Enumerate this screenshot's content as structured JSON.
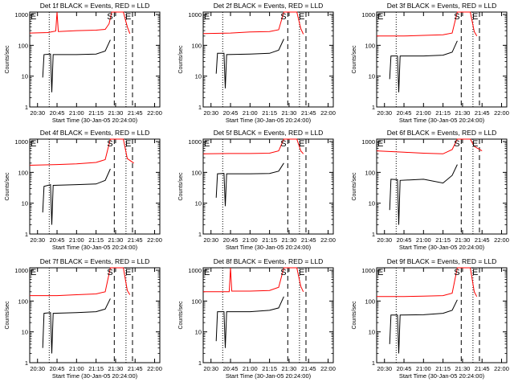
{
  "chart_data": [
    {
      "type": "line",
      "title": "Det 1f BLACK = Events, RED = LLD",
      "ylabel": "Counts/sec",
      "xlabel": "Start Time (30-Jan-05 20:24:00)",
      "x_ticks": [
        "20:30",
        "20:45",
        "21:00",
        "21:15",
        "21:30",
        "21:45",
        "22:00"
      ],
      "y_ticks": [
        "1",
        "10",
        "100",
        "1000"
      ],
      "ylim": [
        1,
        1200
      ],
      "y_scale": "log",
      "markers": [
        "E",
        "S",
        "E"
      ],
      "series": [
        {
          "color": "#ff0000",
          "points": [
            [
              "20:24",
              250
            ],
            [
              "20:38",
              260
            ],
            [
              "20:44",
              290
            ],
            [
              "20:45",
              1200
            ],
            [
              "20:46",
              280
            ],
            [
              "21:00",
              300
            ],
            [
              "21:15",
              310
            ],
            [
              "21:22",
              330
            ],
            [
              "21:25",
              500
            ],
            [
              "21:27",
              1200
            ],
            [
              "21:36",
              1200
            ],
            [
              "21:39",
              400
            ],
            [
              "21:41",
              240
            ]
          ]
        },
        {
          "color": "#000000",
          "points": [
            [
              "20:34",
              9
            ],
            [
              "20:35",
              50
            ],
            [
              "20:40",
              52
            ],
            [
              "20:41",
              3
            ],
            [
              "20:42",
              50
            ],
            [
              "21:00",
              50
            ],
            [
              "21:15",
              52
            ],
            [
              "21:22",
              65
            ],
            [
              "21:26",
              150
            ]
          ]
        }
      ]
    },
    {
      "type": "line",
      "title": "Det 2f BLACK = Events, RED = LLD",
      "ylabel": "Counts/sec",
      "xlabel": "Start Time (30-Jan-05 20:24:00)",
      "x_ticks": [
        "20:30",
        "20:45",
        "21:00",
        "21:15",
        "21:30",
        "21:45",
        "22:00"
      ],
      "y_ticks": [
        "1",
        "10",
        "100",
        "1000"
      ],
      "ylim": [
        1,
        1200
      ],
      "y_scale": "log",
      "markers": [
        "E",
        "S",
        "E"
      ],
      "series": [
        {
          "color": "#ff0000",
          "points": [
            [
              "20:24",
              240
            ],
            [
              "20:45",
              250
            ],
            [
              "21:00",
              270
            ],
            [
              "21:15",
              280
            ],
            [
              "21:22",
              320
            ],
            [
              "21:26",
              1200
            ],
            [
              "21:36",
              1200
            ],
            [
              "21:39",
              350
            ],
            [
              "21:41",
              230
            ]
          ]
        },
        {
          "color": "#000000",
          "points": [
            [
              "20:34",
              12
            ],
            [
              "20:35",
              55
            ],
            [
              "20:40",
              55
            ],
            [
              "20:41",
              4
            ],
            [
              "20:42",
              50
            ],
            [
              "21:00",
              52
            ],
            [
              "21:15",
              55
            ],
            [
              "21:22",
              70
            ],
            [
              "21:26",
              160
            ]
          ]
        }
      ]
    },
    {
      "type": "line",
      "title": "Det 3f BLACK = Events, RED = LLD",
      "ylabel": "Counts/sec",
      "xlabel": "Start Time (30-Jan-05 20:24:00)",
      "x_ticks": [
        "20:30",
        "20:45",
        "21:00",
        "21:15",
        "21:30",
        "21:45",
        "22:00"
      ],
      "y_ticks": [
        "1",
        "10",
        "100",
        "1000"
      ],
      "ylim": [
        1,
        1200
      ],
      "y_scale": "log",
      "markers": [
        "E",
        "S",
        "E"
      ],
      "series": [
        {
          "color": "#ff0000",
          "points": [
            [
              "20:24",
              200
            ],
            [
              "20:45",
              200
            ],
            [
              "21:00",
              210
            ],
            [
              "21:15",
              220
            ],
            [
              "21:22",
              250
            ],
            [
              "21:26",
              1200
            ],
            [
              "21:36",
              1200
            ],
            [
              "21:39",
              280
            ],
            [
              "21:41",
              200
            ]
          ]
        },
        {
          "color": "#000000",
          "points": [
            [
              "20:34",
              8
            ],
            [
              "20:35",
              45
            ],
            [
              "20:40",
              45
            ],
            [
              "20:41",
              3
            ],
            [
              "20:42",
              45
            ],
            [
              "21:00",
              45
            ],
            [
              "21:15",
              48
            ],
            [
              "21:22",
              60
            ],
            [
              "21:26",
              140
            ]
          ]
        }
      ]
    },
    {
      "type": "line",
      "title": "Det 4f BLACK = Events, RED = LLD",
      "ylabel": "Counts/sec",
      "xlabel": "Start Time (30-Jan-05 20:24:00)",
      "x_ticks": [
        "20:30",
        "20:45",
        "21:00",
        "21:15",
        "21:30",
        "21:45",
        "22:00"
      ],
      "y_ticks": [
        "1",
        "10",
        "100",
        "1000"
      ],
      "ylim": [
        1,
        1200
      ],
      "y_scale": "log",
      "markers": [
        "E",
        "S",
        "E"
      ],
      "series": [
        {
          "color": "#ff0000",
          "points": [
            [
              "20:24",
              170
            ],
            [
              "20:45",
              180
            ],
            [
              "21:00",
              190
            ],
            [
              "21:15",
              210
            ],
            [
              "21:22",
              260
            ],
            [
              "21:26",
              1200
            ],
            [
              "21:36",
              1200
            ],
            [
              "21:39",
              280
            ],
            [
              "21:44",
              200
            ]
          ]
        },
        {
          "color": "#000000",
          "points": [
            [
              "20:34",
              5
            ],
            [
              "20:35",
              35
            ],
            [
              "20:40",
              40
            ],
            [
              "20:41",
              2
            ],
            [
              "20:42",
              38
            ],
            [
              "21:00",
              40
            ],
            [
              "21:15",
              42
            ],
            [
              "21:22",
              55
            ],
            [
              "21:26",
              130
            ]
          ]
        }
      ]
    },
    {
      "type": "line",
      "title": "Det 5f BLACK = Events, RED = LLD",
      "ylabel": "Counts/sec",
      "xlabel": "Start Time (30-Jan-05 20:24:00)",
      "x_ticks": [
        "20:30",
        "20:45",
        "21:00",
        "21:15",
        "21:30",
        "21:45",
        "22:00"
      ],
      "y_ticks": [
        "1",
        "10",
        "100",
        "1000"
      ],
      "ylim": [
        1,
        1200
      ],
      "y_scale": "log",
      "markers": [
        "E",
        "S",
        "E"
      ],
      "series": [
        {
          "color": "#ff0000",
          "points": [
            [
              "20:24",
              400
            ],
            [
              "20:45",
              410
            ],
            [
              "21:00",
              410
            ],
            [
              "21:15",
              420
            ],
            [
              "21:22",
              500
            ],
            [
              "21:26",
              1200
            ],
            [
              "21:36",
              1200
            ],
            [
              "21:39",
              500
            ],
            [
              "21:41",
              400
            ]
          ]
        },
        {
          "color": "#000000",
          "points": [
            [
              "20:34",
              15
            ],
            [
              "20:35",
              90
            ],
            [
              "20:40",
              92
            ],
            [
              "20:41",
              8
            ],
            [
              "20:42",
              90
            ],
            [
              "21:00",
              90
            ],
            [
              "21:15",
              92
            ],
            [
              "21:22",
              110
            ],
            [
              "21:26",
              200
            ]
          ]
        }
      ]
    },
    {
      "type": "line",
      "title": "Det 6f BLACK = Events, RED = LLD",
      "ylabel": "Counts/sec",
      "xlabel": "Start Time (30-Jan-05 20:24:00)",
      "x_ticks": [
        "20:30",
        "20:45",
        "21:00",
        "21:15",
        "21:30",
        "21:45",
        "22:00"
      ],
      "y_ticks": [
        "1",
        "10",
        "100",
        "1000"
      ],
      "ylim": [
        1,
        1200
      ],
      "y_scale": "log",
      "markers": [
        "E",
        "S",
        "E"
      ],
      "series": [
        {
          "color": "#ff0000",
          "points": [
            [
              "20:24",
              500
            ],
            [
              "20:45",
              450
            ],
            [
              "21:00",
              420
            ],
            [
              "21:15",
              400
            ],
            [
              "21:22",
              550
            ],
            [
              "21:26",
              1200
            ],
            [
              "21:36",
              1200
            ],
            [
              "21:39",
              700
            ],
            [
              "21:45",
              500
            ]
          ]
        },
        {
          "color": "#000000",
          "points": [
            [
              "20:34",
              6
            ],
            [
              "20:35",
              60
            ],
            [
              "20:40",
              58
            ],
            [
              "20:41",
              2
            ],
            [
              "20:42",
              55
            ],
            [
              "21:00",
              60
            ],
            [
              "21:15",
              45
            ],
            [
              "21:22",
              80
            ],
            [
              "21:26",
              180
            ]
          ]
        }
      ]
    },
    {
      "type": "line",
      "title": "Det 7f BLACK = Events, RED = LLD",
      "ylabel": "Counts/sec",
      "xlabel": "Start Time (30-Jan-05 20:24:00)",
      "x_ticks": [
        "20:30",
        "20:45",
        "21:00",
        "21:15",
        "21:30",
        "21:45",
        "22:00"
      ],
      "y_ticks": [
        "1",
        "10",
        "100",
        "1000"
      ],
      "ylim": [
        1,
        1200
      ],
      "y_scale": "log",
      "markers": [
        "E",
        "S",
        "E"
      ],
      "series": [
        {
          "color": "#ff0000",
          "points": [
            [
              "20:24",
              150
            ],
            [
              "20:45",
              150
            ],
            [
              "21:00",
              160
            ],
            [
              "21:15",
              170
            ],
            [
              "21:22",
              200
            ],
            [
              "21:26",
              1200
            ],
            [
              "21:36",
              1200
            ],
            [
              "21:39",
              220
            ],
            [
              "21:41",
              160
            ]
          ]
        },
        {
          "color": "#000000",
          "points": [
            [
              "20:34",
              3
            ],
            [
              "20:35",
              40
            ],
            [
              "20:40",
              42
            ],
            [
              "20:41",
              2
            ],
            [
              "20:42",
              40
            ],
            [
              "21:00",
              42
            ],
            [
              "21:15",
              45
            ],
            [
              "21:22",
              55
            ],
            [
              "21:26",
              120
            ]
          ]
        }
      ]
    },
    {
      "type": "line",
      "title": "Det 8f BLACK = Events, RED = LLD",
      "ylabel": "Counts/sec",
      "xlabel": "Start Time (30-Jan-05 20:24:00)",
      "x_ticks": [
        "20:30",
        "20:45",
        "21:00",
        "21:15",
        "21:30",
        "21:45",
        "22:00"
      ],
      "y_ticks": [
        "1",
        "10",
        "100",
        "1000"
      ],
      "ylim": [
        1,
        1200
      ],
      "y_scale": "log",
      "markers": [
        "E",
        "S",
        "E"
      ],
      "series": [
        {
          "color": "#ff0000",
          "points": [
            [
              "20:24",
              200
            ],
            [
              "20:44",
              200
            ],
            [
              "20:45",
              1200
            ],
            [
              "20:46",
              210
            ],
            [
              "21:00",
              210
            ],
            [
              "21:15",
              220
            ],
            [
              "21:22",
              280
            ],
            [
              "21:26",
              1200
            ],
            [
              "21:36",
              1200
            ],
            [
              "21:39",
              300
            ],
            [
              "21:41",
              200
            ]
          ]
        },
        {
          "color": "#000000",
          "points": [
            [
              "20:34",
              5
            ],
            [
              "20:35",
              45
            ],
            [
              "20:40",
              45
            ],
            [
              "20:41",
              3
            ],
            [
              "20:42",
              45
            ],
            [
              "21:00",
              45
            ],
            [
              "21:15",
              50
            ],
            [
              "21:22",
              60
            ],
            [
              "21:26",
              140
            ]
          ]
        }
      ]
    },
    {
      "type": "line",
      "title": "Det 9f BLACK = Events, RED = LLD",
      "ylabel": "Counts/sec",
      "xlabel": "Start Time (30-Jan-05 20:24:00)",
      "x_ticks": [
        "20:30",
        "20:45",
        "21:00",
        "21:15",
        "21:30",
        "21:45",
        "22:00"
      ],
      "y_ticks": [
        "1",
        "10",
        "100",
        "1000"
      ],
      "ylim": [
        1,
        1200
      ],
      "y_scale": "log",
      "markers": [
        "E",
        "S",
        "E"
      ],
      "series": [
        {
          "color": "#ff0000",
          "points": [
            [
              "20:24",
              140
            ],
            [
              "20:45",
              140
            ],
            [
              "21:00",
              145
            ],
            [
              "21:15",
              150
            ],
            [
              "21:22",
              180
            ],
            [
              "21:26",
              1200
            ],
            [
              "21:36",
              1200
            ],
            [
              "21:39",
              200
            ],
            [
              "21:41",
              140
            ]
          ]
        },
        {
          "color": "#000000",
          "points": [
            [
              "20:34",
              4
            ],
            [
              "20:35",
              35
            ],
            [
              "20:40",
              35
            ],
            [
              "20:41",
              2
            ],
            [
              "20:42",
              35
            ],
            [
              "21:00",
              36
            ],
            [
              "21:15",
              40
            ],
            [
              "21:22",
              50
            ],
            [
              "21:26",
              110
            ]
          ]
        }
      ]
    }
  ]
}
